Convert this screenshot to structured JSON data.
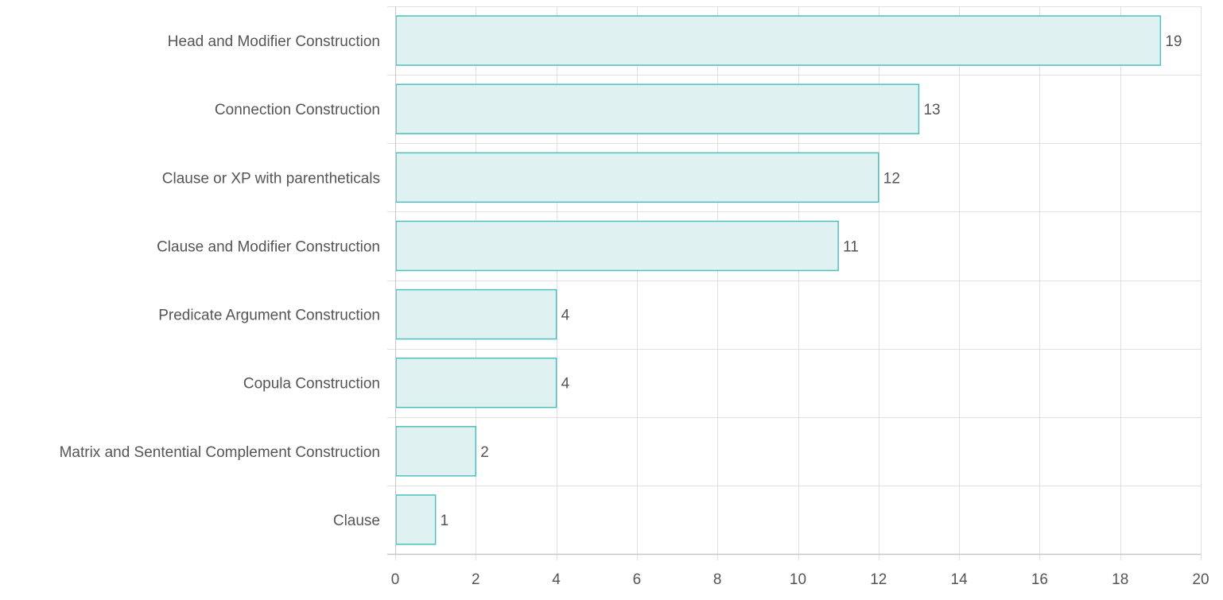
{
  "chart_data": {
    "type": "bar",
    "orientation": "horizontal",
    "categories": [
      "Head and Modifier Construction",
      "Connection Construction",
      "Clause or XP with parentheticals",
      "Clause and Modifier Construction",
      "Predicate Argument Construction",
      "Copula Construction",
      "Matrix and Sentential Complement Construction",
      "Clause"
    ],
    "values": [
      19,
      13,
      12,
      11,
      4,
      4,
      2,
      1
    ],
    "title": "",
    "xlabel": "",
    "ylabel": "",
    "xlim": [
      0,
      20
    ],
    "x_ticks": [
      0,
      2,
      4,
      6,
      8,
      10,
      12,
      14,
      16,
      18,
      20
    ],
    "grid": true,
    "legend": "none",
    "data_labels": true,
    "colors": {
      "bar_fill": "#dff2f1",
      "bar_stroke": "#4dbfbf",
      "grid": "#e0e0e0",
      "axis": "#c8c8c8",
      "text": "#555555"
    }
  }
}
